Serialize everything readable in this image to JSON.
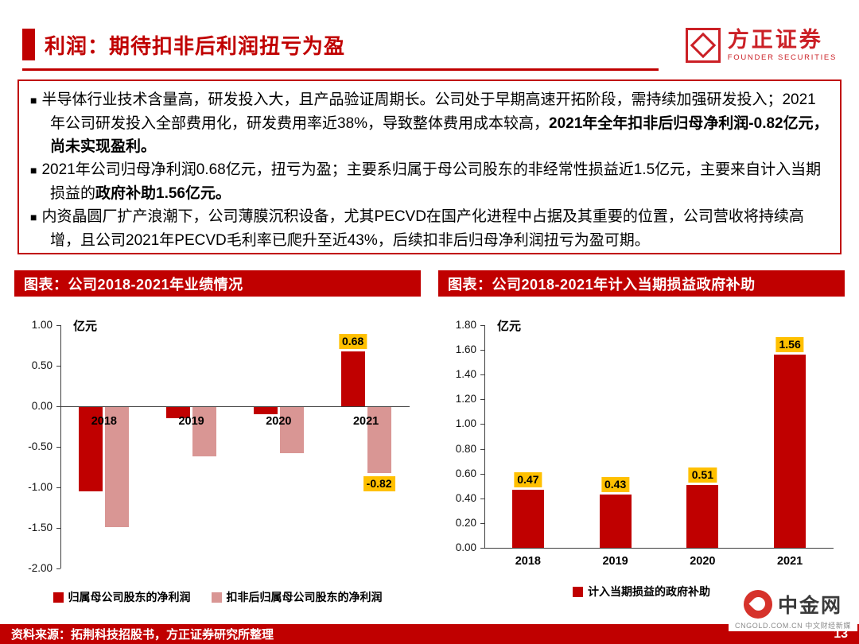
{
  "header": {
    "title": "利润：期待扣非后利润扭亏为盈",
    "logo_cn": "方正证券",
    "logo_en": "FOUNDER SECURITIES"
  },
  "bullet_char": "■",
  "bullets": [
    [
      {
        "text": "半导体行业技术含量高，研发投入大，且产品验证周期长。公司处于早期高速开拓阶段，需持续加强研发投入；2021年公司研发投入全部费用化，研发费用率近38%，导致整体费用成本较高，",
        "bold": false
      },
      {
        "text": "2021年全年扣非后归母净利润-0.82亿元，尚未实现盈利。",
        "bold": true
      }
    ],
    [
      {
        "text": "2021年公司归母净利润0.68亿元，扭亏为盈；主要系归属于母公司股东的非经常性损益近1.5亿元，主要来自计入当期损益的",
        "bold": false
      },
      {
        "text": "政府补助1.56亿元。",
        "bold": true
      }
    ],
    [
      {
        "text": "内资晶圆厂扩产浪潮下，公司薄膜沉积设备，尤其PECVD在国产化进程中占据及其重要的位置，公司营收将持续高增，且公司2021年PECVD毛利率已爬升至近43%，后续扣非后归母净利润扭亏为盈可期。",
        "bold": false
      }
    ]
  ],
  "chart_data": [
    {
      "type": "bar",
      "title": "图表：公司2018-2021年业绩情况",
      "unit": "亿元",
      "categories": [
        "2018",
        "2019",
        "2020",
        "2021"
      ],
      "series": [
        {
          "name": "归属母公司股东的净利润",
          "color": "#C00000",
          "values": [
            -1.05,
            -0.15,
            -0.1,
            0.68
          ],
          "value_labels": [
            "",
            "",
            "",
            "0.68"
          ]
        },
        {
          "name": "扣非后归属母公司股东的净利润",
          "color": "#D99694",
          "values": [
            -1.49,
            -0.62,
            -0.58,
            -0.82
          ],
          "value_labels": [
            "",
            "",
            "",
            "-0.82"
          ]
        }
      ],
      "ylim": [
        -2.0,
        1.0
      ],
      "ytick_step": 0.5,
      "label_bg": "#FFC000",
      "grid": false,
      "legend_position": "bottom"
    },
    {
      "type": "bar",
      "title": "图表：公司2018-2021年计入当期损益政府补助",
      "unit": "亿元",
      "categories": [
        "2018",
        "2019",
        "2020",
        "2021"
      ],
      "series": [
        {
          "name": "计入当期损益的政府补助",
          "color": "#C00000",
          "values": [
            0.47,
            0.43,
            0.51,
            1.56
          ],
          "value_labels": [
            "0.47",
            "0.43",
            "0.51",
            "1.56"
          ]
        }
      ],
      "ylim": [
        0,
        1.8
      ],
      "ytick_step": 0.2,
      "label_bg": "#FFC000",
      "grid": false,
      "legend_position": "bottom"
    }
  ],
  "footer": {
    "source": "资料来源：拓荆科技招股书，方正证券研究所整理",
    "page": "13"
  },
  "watermark": {
    "title": "中金网",
    "sub": "CNGOLD.COM.CN 中文财经新媒"
  },
  "colors": {
    "accent": "#C00000",
    "series_primary": "#C00000",
    "series_secondary": "#D99694",
    "value_label_bg": "#FFC000"
  }
}
